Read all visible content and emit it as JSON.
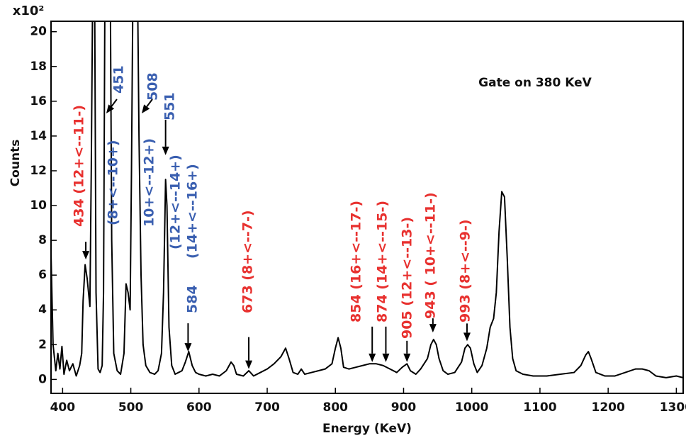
{
  "chart_data": {
    "type": "line",
    "title": "Gate on 380 KeV",
    "x_label": "Energy (KeV)",
    "y_label": "Counts",
    "y_multiplier": "x10²",
    "xlim": [
      383,
      1310
    ],
    "ylim": [
      -0.8,
      20.6
    ],
    "xticks": [
      400,
      500,
      600,
      700,
      800,
      900,
      1000,
      1100,
      1200,
      1300
    ],
    "yticks": [
      0,
      2,
      4,
      6,
      8,
      10,
      12,
      14,
      16,
      18,
      20
    ],
    "series": [
      {
        "color": "#000000",
        "x": [
          383,
          386,
          390,
          393,
          396,
          399,
          402,
          406,
          410,
          415,
          420,
          425,
          428,
          430,
          433,
          436,
          438,
          440,
          442,
          444,
          447,
          449,
          452,
          455,
          458,
          460,
          462,
          470,
          472,
          475,
          480,
          485,
          490,
          493,
          496,
          499,
          501,
          503,
          510,
          512,
          515,
          518,
          522,
          528,
          535,
          540,
          545,
          548,
          551,
          553,
          556,
          560,
          565,
          570,
          575,
          580,
          585,
          590,
          595,
          600,
          610,
          620,
          630,
          640,
          647,
          651,
          655,
          665,
          673,
          680,
          690,
          700,
          710,
          720,
          727,
          732,
          738,
          745,
          750,
          755,
          765,
          775,
          785,
          795,
          800,
          804,
          808,
          812,
          820,
          830,
          840,
          850,
          860,
          870,
          880,
          890,
          898,
          905,
          910,
          918,
          925,
          935,
          940,
          944,
          948,
          952,
          958,
          965,
          975,
          985,
          990,
          994,
          998,
          1003,
          1008,
          1015,
          1022,
          1027,
          1032,
          1036,
          1040,
          1044,
          1048,
          1052,
          1056,
          1060,
          1065,
          1075,
          1090,
          1110,
          1130,
          1150,
          1160,
          1167,
          1171,
          1175,
          1182,
          1195,
          1210,
          1225,
          1240,
          1250,
          1260,
          1270,
          1285,
          1300,
          1310
        ],
        "values": [
          7.2,
          2,
          0.5,
          1.5,
          0.6,
          1.9,
          0.3,
          1.1,
          0.5,
          0.9,
          0.2,
          0.8,
          1.5,
          4.5,
          6.6,
          5.8,
          5.0,
          4.2,
          12,
          22,
          22,
          5,
          0.6,
          0.4,
          0.8,
          5,
          22,
          22,
          8,
          1.5,
          0.5,
          0.3,
          1.5,
          5.5,
          5.0,
          4.0,
          12,
          22,
          22,
          14,
          6,
          2,
          0.8,
          0.4,
          0.3,
          0.5,
          1.5,
          5,
          11.5,
          10,
          3,
          0.8,
          0.3,
          0.4,
          0.5,
          1.0,
          1.6,
          0.8,
          0.4,
          0.3,
          0.2,
          0.3,
          0.2,
          0.5,
          1.0,
          0.8,
          0.3,
          0.2,
          0.5,
          0.2,
          0.4,
          0.6,
          0.9,
          1.3,
          1.8,
          1.2,
          0.4,
          0.3,
          0.6,
          0.3,
          0.4,
          0.5,
          0.6,
          0.9,
          1.8,
          2.4,
          1.8,
          0.7,
          0.6,
          0.7,
          0.8,
          0.9,
          0.9,
          0.8,
          0.6,
          0.4,
          0.7,
          0.9,
          0.5,
          0.3,
          0.6,
          1.2,
          2.0,
          2.3,
          2.0,
          1.2,
          0.5,
          0.3,
          0.4,
          1.0,
          1.8,
          2.0,
          1.8,
          0.9,
          0.4,
          0.8,
          1.8,
          3.0,
          3.5,
          5.0,
          8.5,
          10.8,
          10.5,
          7,
          3,
          1.2,
          0.5,
          0.3,
          0.2,
          0.2,
          0.3,
          0.4,
          0.8,
          1.4,
          1.6,
          1.2,
          0.4,
          0.2,
          0.2,
          0.4,
          0.6,
          0.6,
          0.5,
          0.2,
          0.1,
          0.2,
          0.1
        ]
      }
    ],
    "annotations": [
      {
        "text": "434 (12+<--11-)",
        "color": "#e8312f"
      },
      {
        "text": "451",
        "color": "#3a5fb0"
      },
      {
        "text": "(8+<--10+)",
        "color": "#3a5fb0"
      },
      {
        "text": "508",
        "color": "#3a5fb0"
      },
      {
        "text": "10+<--12+)",
        "color": "#3a5fb0"
      },
      {
        "text": "551",
        "color": "#3a5fb0"
      },
      {
        "text": "(12+<--14+)",
        "color": "#3a5fb0"
      },
      {
        "text": "(14+<--16+)",
        "color": "#3a5fb0"
      },
      {
        "text": "584",
        "color": "#3a5fb0"
      },
      {
        "text": "673 (8+<--7-)",
        "color": "#e8312f"
      },
      {
        "text": "854 (16+<--17-)",
        "color": "#e8312f"
      },
      {
        "text": "874 (14+<--15-)",
        "color": "#e8312f"
      },
      {
        "text": "905 (12+<--13-)",
        "color": "#e8312f"
      },
      {
        "text": "943 ( 10+<--11-)",
        "color": "#e8312f"
      },
      {
        "text": "993 (8+<--9-)",
        "color": "#e8312f"
      }
    ],
    "arrows": [
      {
        "x": 434,
        "y": 6.9
      },
      {
        "x": 464,
        "y": 15.3
      },
      {
        "x": 516,
        "y": 15.3
      },
      {
        "x": 551,
        "y": 12.9
      },
      {
        "x": 584,
        "y": 1.6
      },
      {
        "x": 673,
        "y": 0.6
      },
      {
        "x": 854,
        "y": 1.0
      },
      {
        "x": 874,
        "y": 1.0
      },
      {
        "x": 905,
        "y": 1.0
      },
      {
        "x": 943,
        "y": 2.7
      },
      {
        "x": 993,
        "y": 2.2
      }
    ]
  }
}
